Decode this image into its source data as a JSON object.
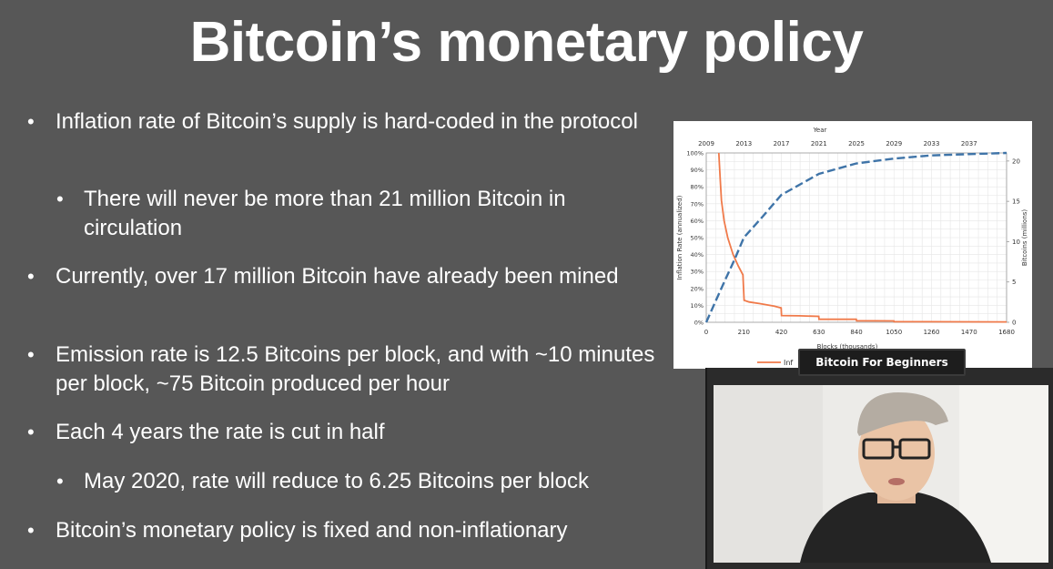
{
  "slide": {
    "title": "Bitcoin’s monetary policy",
    "bullets": [
      {
        "level": 1,
        "text": "Inflation rate of Bitcoin’s supply is hard-coded in the protocol"
      },
      {
        "level": 2,
        "text": "There will never be more than 21 million Bitcoin in circulation"
      },
      {
        "level": 1,
        "text": "Currently, over 17 million Bitcoin have already been mined"
      },
      {
        "level": 1,
        "text": "Emission rate is 12.5 Bitcoins per block, and with ~10 minutes per block, ~75 Bitcoin produced per hour"
      },
      {
        "level": 1,
        "text": "Each 4 years the rate is cut in half"
      },
      {
        "level": 2,
        "text": "May 2020, rate will reduce to 6.25 Bitcoins per block"
      },
      {
        "level": 1,
        "text": "Bitcoin’s monetary policy is fixed and non-inflationary"
      }
    ]
  },
  "webcam": {
    "label": "Bitcoin For Beginners"
  },
  "chart_data": {
    "type": "line",
    "top_axis_label": "Year",
    "top_ticks": [
      "2009",
      "2013",
      "2017",
      "2021",
      "2025",
      "2029",
      "2033",
      "2037"
    ],
    "xlabel": "Blocks (thousands)",
    "x_ticks": [
      "0",
      "210",
      "420",
      "630",
      "840",
      "1050",
      "1260",
      "1470",
      "1680"
    ],
    "xlim": [
      0,
      1680
    ],
    "left_ylabel": "Inflation Rate (annualized)",
    "left_ticks": [
      "0%",
      "10%",
      "20%",
      "30%",
      "40%",
      "50%",
      "60%",
      "70%",
      "80%",
      "90%",
      "100%"
    ],
    "left_ylim": [
      0,
      100
    ],
    "right_ylabel": "Bitcoins (millions)",
    "right_ticks": [
      "0",
      "5",
      "10",
      "15",
      "20"
    ],
    "right_ylim": [
      0,
      21
    ],
    "legend_partial": "Inf",
    "series": [
      {
        "axis": "left",
        "color": "#f07a4a",
        "style": "solid",
        "x": [
          70,
          78,
          85,
          100,
          120,
          150,
          180,
          205,
          212,
          240,
          300,
          380,
          419,
          421,
          520,
          629,
          631,
          750,
          839,
          841,
          1049,
          1051,
          1680
        ],
        "y": [
          100,
          85,
          72,
          60,
          50,
          40,
          33,
          28,
          13,
          12,
          11,
          9.5,
          8.5,
          4,
          3.8,
          3.5,
          1.8,
          1.8,
          1.8,
          0.9,
          0.8,
          0.4,
          0.2
        ]
      },
      {
        "axis": "right",
        "color": "#3f74a8",
        "style": "dashed",
        "x": [
          0,
          50,
          105,
          157,
          210,
          315,
          420,
          630,
          840,
          1050,
          1260,
          1470,
          1680
        ],
        "y": [
          0,
          2.5,
          5.2,
          7.7,
          10.5,
          13.1,
          15.8,
          18.4,
          19.7,
          20.3,
          20.7,
          20.85,
          21
        ]
      }
    ]
  }
}
